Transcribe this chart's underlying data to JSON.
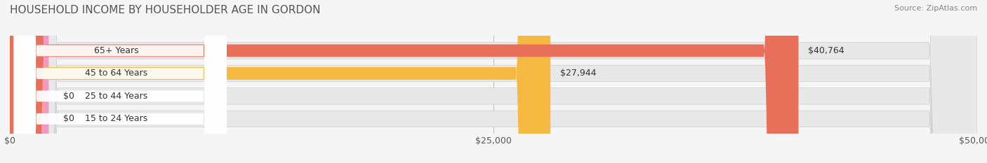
{
  "title": "HOUSEHOLD INCOME BY HOUSEHOLDER AGE IN GORDON",
  "source": "Source: ZipAtlas.com",
  "categories": [
    "15 to 24 Years",
    "25 to 44 Years",
    "45 to 64 Years",
    "65+ Years"
  ],
  "values": [
    0,
    0,
    27944,
    40764
  ],
  "bar_colors": [
    "#9999cc",
    "#f49ac2",
    "#f5b942",
    "#e8705a"
  ],
  "bar_bg_color": "#e8e8e8",
  "background_color": "#f5f5f5",
  "xlim": [
    0,
    50000
  ],
  "xticks": [
    0,
    25000,
    50000
  ],
  "xtick_labels": [
    "$0",
    "$25,000",
    "$50,000"
  ],
  "value_labels": [
    "$0",
    "$0",
    "$27,944",
    "$40,764"
  ],
  "title_fontsize": 11,
  "source_fontsize": 8,
  "label_fontsize": 9,
  "tick_fontsize": 9
}
